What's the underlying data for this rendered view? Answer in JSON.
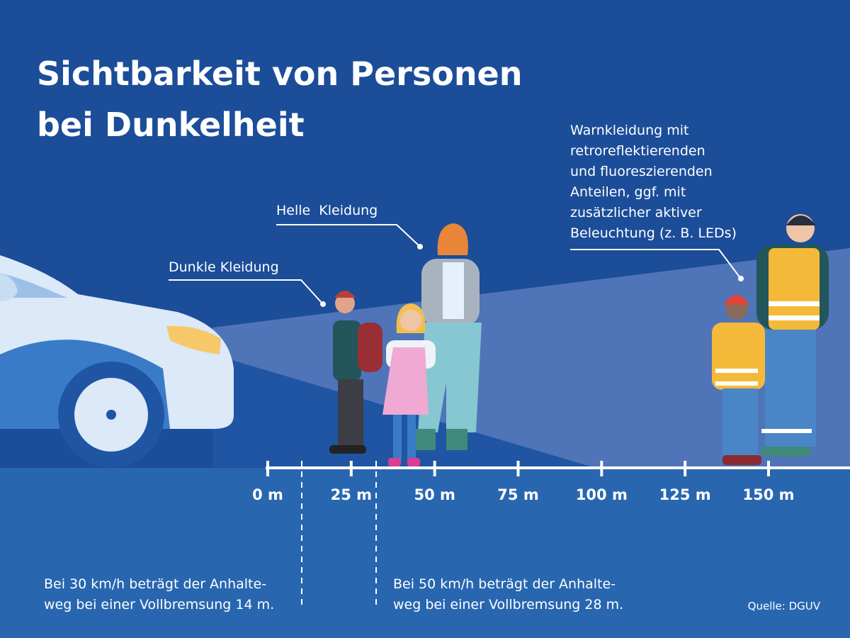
{
  "header": {
    "title": [
      "Sichtbarkeit von Personen",
      "bei Dunkelheit"
    ]
  },
  "callouts": {
    "dark": "Dunkle Kleidung",
    "light": "Helle  Kleidung",
    "warn": [
      "Warnkleidung mit",
      "retroreflektierenden",
      "und fluoreszierenden",
      "Anteilen, ggf. mit",
      "zusätzlicher aktiver",
      "Beleuchtung (z. B. LEDs)"
    ]
  },
  "axis": {
    "ticks": [
      "0 m",
      "25 m",
      "50 m",
      "75 m",
      "100 m",
      "125 m",
      "150 m"
    ]
  },
  "notes": [
    [
      "Bei 30 km/h beträgt der Anhalte-",
      "weg bei einer Vollbremsung 14 m."
    ],
    [
      "Bei 50 km/h beträgt der Anhalte-",
      "weg bei einer Vollbremsung 28 m."
    ]
  ],
  "source": "Quelle: DGUV"
}
